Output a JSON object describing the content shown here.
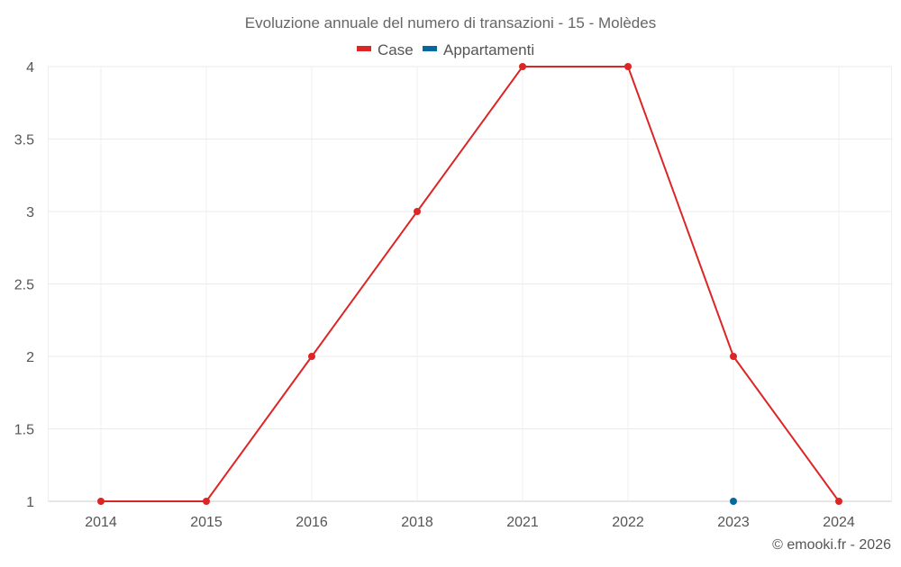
{
  "chart_data": {
    "type": "line",
    "title": "Evoluzione annuale del numero di transazioni - 15 - Molèdes",
    "categories": [
      "2014",
      "2015",
      "2016",
      "2018",
      "2021",
      "2022",
      "2023",
      "2024"
    ],
    "series": [
      {
        "name": "Case",
        "color": "#dc2626",
        "values": [
          1,
          1,
          2,
          3,
          4,
          4,
          2,
          1
        ]
      },
      {
        "name": "Appartamenti",
        "color": "#0369a1",
        "values": [
          null,
          null,
          null,
          null,
          null,
          null,
          1,
          null
        ]
      }
    ],
    "yticks": [
      "1",
      "1.5",
      "2",
      "2.5",
      "3",
      "3.5",
      "4"
    ],
    "ylim": [
      1,
      4
    ],
    "grid": true,
    "legend": "top-center",
    "xlabel": "",
    "ylabel": ""
  },
  "credit": "© emooki.fr - 2026"
}
